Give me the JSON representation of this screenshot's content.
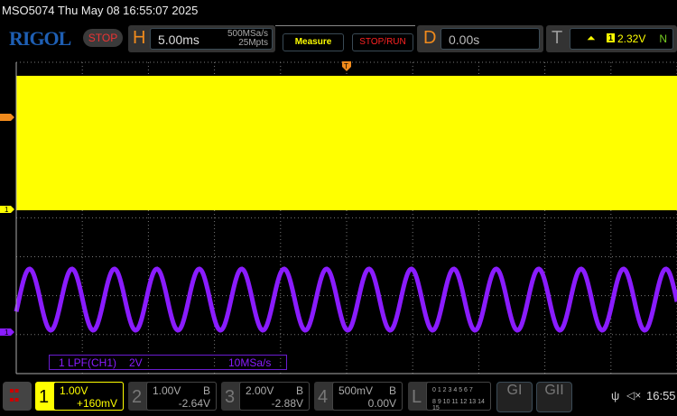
{
  "header": {
    "title": "MSO5074  Thu May 08 16:55:07 2025",
    "logo": "RIGOL",
    "run_state": "STOP",
    "horizontal": {
      "label": "H",
      "timebase": "5.00ms",
      "sample_rate": "500MSa/s",
      "memory_depth": "25Mpts"
    },
    "measure_label": "Measure",
    "stop_run_label": "STOP/RUN",
    "delay": {
      "label": "D",
      "value": "0.00s"
    },
    "trigger": {
      "label": "T",
      "source": "1",
      "level": "2.32V",
      "mode": "N"
    }
  },
  "waveform": {
    "ch1_color": "#ffff00",
    "filter_color": "#8a1cff",
    "ch1_marker": "1",
    "filter_marker": "1",
    "trigger_marker": "T",
    "filter_label": {
      "source": "1 LPF(CH1)",
      "scale": "2V",
      "rate": "10MSa/s"
    }
  },
  "channels": [
    {
      "num": "1",
      "scale": "1.00V",
      "offset": "+160mV",
      "bw": "",
      "active": true,
      "color": "#ffff00"
    },
    {
      "num": "2",
      "scale": "1.00V",
      "offset": "-2.64V",
      "bw": "B",
      "active": false
    },
    {
      "num": "3",
      "scale": "2.00V",
      "offset": "-2.88V",
      "bw": "B",
      "active": false
    },
    {
      "num": "4",
      "scale": "500mV",
      "offset": "0.00V",
      "bw": "B",
      "active": false
    }
  ],
  "logic": {
    "label": "L",
    "row1": "0 1 2 3  4 5 6 7",
    "row2": "8 9 10 11 12 13 14 15"
  },
  "generators": [
    "GI",
    "GII"
  ],
  "status": {
    "time": "16:55"
  }
}
